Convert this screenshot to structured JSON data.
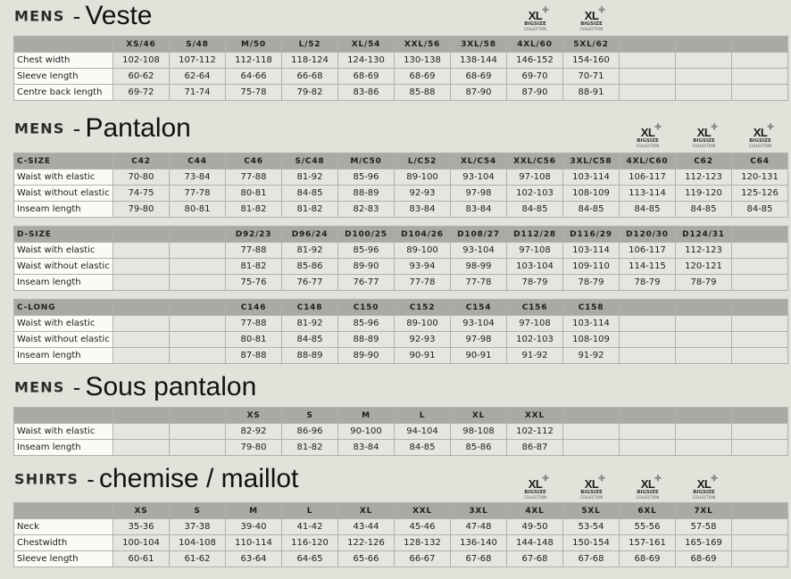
{
  "logo": {
    "main": "XL",
    "plus": "✚",
    "line1": "BIGSIZE",
    "line2": "COLLECTION"
  },
  "sections": [
    {
      "key": "veste",
      "category": "MENS",
      "dash": "-",
      "name": "Veste",
      "tables": [
        {
          "header": [
            "",
            "XS/46",
            "S/48",
            "M/50",
            "L/52",
            "XL/54",
            "XXL/56",
            "3XL/58",
            "4XL/60",
            "5XL/62",
            "",
            "",
            ""
          ],
          "rows": [
            [
              "Chest width",
              "102-108",
              "107-112",
              "112-118",
              "118-124",
              "124-130",
              "130-138",
              "138-144",
              "146-152",
              "154-160",
              "",
              "",
              ""
            ],
            [
              "Sleeve length",
              "60-62",
              "62-64",
              "64-66",
              "66-68",
              "68-69",
              "68-69",
              "68-69",
              "69-70",
              "70-71",
              "",
              "",
              ""
            ],
            [
              "Centre back length",
              "69-72",
              "71-74",
              "75-78",
              "79-82",
              "83-86",
              "85-88",
              "87-90",
              "87-90",
              "88-91",
              "",
              "",
              ""
            ]
          ]
        }
      ]
    },
    {
      "key": "pantalon",
      "category": "MENS",
      "dash": "-",
      "name": "Pantalon",
      "tables": [
        {
          "header": [
            "C-SIZE",
            "C42",
            "C44",
            "C46",
            "S/C48",
            "M/C50",
            "L/C52",
            "XL/C54",
            "XXL/C56",
            "3XL/C58",
            "4XL/C60",
            "C62",
            "C64"
          ],
          "rows": [
            [
              "Waist with elastic",
              "70-80",
              "73-84",
              "77-88",
              "81-92",
              "85-96",
              "89-100",
              "93-104",
              "97-108",
              "103-114",
              "106-117",
              "112-123",
              "120-131"
            ],
            [
              "Waist without elastic",
              "74-75",
              "77-78",
              "80-81",
              "84-85",
              "88-89",
              "92-93",
              "97-98",
              "102-103",
              "108-109",
              "113-114",
              "119-120",
              "125-126"
            ],
            [
              "Inseam length",
              "79-80",
              "80-81",
              "81-82",
              "81-82",
              "82-83",
              "83-84",
              "83-84",
              "84-85",
              "84-85",
              "84-85",
              "84-85",
              "84-85"
            ]
          ]
        },
        {
          "header": [
            "D-SIZE",
            "",
            "",
            "D92/23",
            "D96/24",
            "D100/25",
            "D104/26",
            "D108/27",
            "D112/28",
            "D116/29",
            "D120/30",
            "D124/31",
            ""
          ],
          "rows": [
            [
              "Waist with elastic",
              "",
              "",
              "77-88",
              "81-92",
              "85-96",
              "89-100",
              "93-104",
              "97-108",
              "103-114",
              "106-117",
              "112-123",
              ""
            ],
            [
              "Waist without elastic",
              "",
              "",
              "81-82",
              "85-86",
              "89-90",
              "93-94",
              "98-99",
              "103-104",
              "109-110",
              "114-115",
              "120-121",
              ""
            ],
            [
              "Inseam length",
              "",
              "",
              "75-76",
              "76-77",
              "76-77",
              "77-78",
              "77-78",
              "78-79",
              "78-79",
              "78-79",
              "78-79",
              ""
            ]
          ]
        },
        {
          "header": [
            "C-LONG",
            "",
            "",
            "C146",
            "C148",
            "C150",
            "C152",
            "C154",
            "C156",
            "C158",
            "",
            "",
            ""
          ],
          "rows": [
            [
              "Waist with elastic",
              "",
              "",
              "77-88",
              "81-92",
              "85-96",
              "89-100",
              "93-104",
              "97-108",
              "103-114",
              "",
              "",
              ""
            ],
            [
              "Waist without elastic",
              "",
              "",
              "80-81",
              "84-85",
              "88-89",
              "92-93",
              "97-98",
              "102-103",
              "108-109",
              "",
              "",
              ""
            ],
            [
              "Inseam length",
              "",
              "",
              "87-88",
              "88-89",
              "89-90",
              "90-91",
              "90-91",
              "91-92",
              "91-92",
              "",
              "",
              ""
            ]
          ]
        }
      ]
    },
    {
      "key": "sous-pantalon",
      "category": "MENS",
      "dash": "-",
      "name": "Sous pantalon",
      "tables": [
        {
          "header": [
            "",
            "",
            "",
            "XS",
            "S",
            "M",
            "L",
            "XL",
            "XXL",
            "",
            "",
            "",
            ""
          ],
          "rows": [
            [
              "Waist with elastic",
              "",
              "",
              "82-92",
              "86-96",
              "90-100",
              "94-104",
              "98-108",
              "102-112",
              "",
              "",
              "",
              ""
            ],
            [
              "Inseam length",
              "",
              "",
              "79-80",
              "81-82",
              "83-84",
              "84-85",
              "85-86",
              "86-87",
              "",
              "",
              "",
              ""
            ]
          ]
        }
      ]
    },
    {
      "key": "shirts",
      "category": "SHIRTS",
      "dash": "-",
      "name": "chemise / maillot",
      "tables": [
        {
          "header": [
            "",
            "XS",
            "S",
            "M",
            "L",
            "XL",
            "XXL",
            "3XL",
            "4XL",
            "5XL",
            "6XL",
            "7XL",
            ""
          ],
          "rows": [
            [
              "Neck",
              "35-36",
              "37-38",
              "39-40",
              "41-42",
              "43-44",
              "45-46",
              "47-48",
              "49-50",
              "53-54",
              "55-56",
              "57-58",
              ""
            ],
            [
              "Chestwidth",
              "100-104",
              "104-108",
              "110-114",
              "116-120",
              "122-126",
              "128-132",
              "136-140",
              "144-148",
              "150-154",
              "157-161",
              "165-169",
              ""
            ],
            [
              "Sleeve length",
              "60-61",
              "61-62",
              "63-64",
              "64-65",
              "65-66",
              "66-67",
              "67-68",
              "67-68",
              "67-68",
              "68-69",
              "68-69",
              ""
            ]
          ]
        }
      ]
    }
  ]
}
